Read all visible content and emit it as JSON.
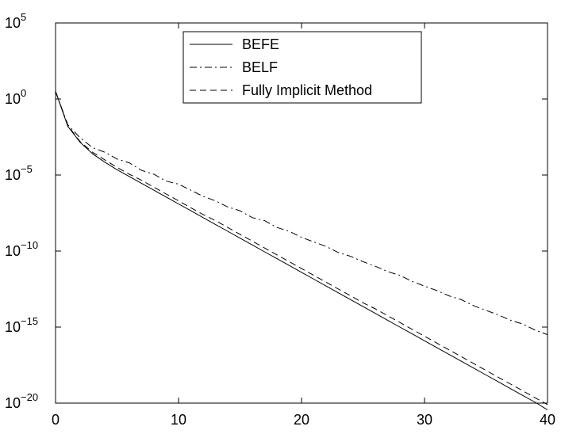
{
  "chart_data": {
    "type": "line",
    "title": "",
    "xlabel": "",
    "ylabel": "",
    "xlim": [
      0,
      40
    ],
    "ylim_log10": [
      -20,
      5
    ],
    "yscale": "log",
    "x_ticks": [
      "0",
      "10",
      "20",
      "30",
      "40"
    ],
    "y_ticks": [
      {
        "base": "10",
        "exp": "5"
      },
      {
        "base": "10",
        "exp": "0"
      },
      {
        "base": "10",
        "exp": "−5"
      },
      {
        "base": "10",
        "exp": "−10"
      },
      {
        "base": "10",
        "exp": "−15"
      },
      {
        "base": "10",
        "exp": "−20"
      }
    ],
    "legend_position": "top-center",
    "grid": false,
    "series": [
      {
        "name": "BEFE",
        "style": "solid",
        "color": "#000000",
        "x": [
          0,
          1,
          2,
          3,
          4,
          5,
          6,
          7,
          8,
          9,
          10,
          11,
          12,
          13,
          14,
          15,
          16,
          17,
          18,
          19,
          20,
          21,
          22,
          23,
          24,
          25,
          26,
          27,
          28,
          29,
          30,
          31,
          32,
          33,
          34,
          35,
          36,
          37,
          38,
          39,
          40
        ],
        "log10_y": [
          0.5,
          -1.8,
          -2.85,
          -3.6,
          -4.15,
          -4.65,
          -5.1,
          -5.55,
          -6.0,
          -6.45,
          -6.9,
          -7.35,
          -7.8,
          -8.25,
          -8.7,
          -9.15,
          -9.6,
          -10.05,
          -10.5,
          -10.95,
          -11.4,
          -11.85,
          -12.3,
          -12.75,
          -13.2,
          -13.65,
          -14.1,
          -14.55,
          -15.0,
          -15.45,
          -15.9,
          -16.35,
          -16.8,
          -17.25,
          -17.7,
          -18.15,
          -18.6,
          -19.05,
          -19.5,
          -19.95,
          -20.45
        ]
      },
      {
        "name": "BELF",
        "style": "dashdot",
        "color": "#000000",
        "x": [
          0,
          1,
          2,
          3,
          4,
          5,
          6,
          7,
          8,
          9,
          10,
          11,
          12,
          13,
          14,
          15,
          16,
          17,
          18,
          19,
          20,
          21,
          22,
          23,
          24,
          25,
          26,
          27,
          28,
          29,
          30,
          31,
          32,
          33,
          34,
          35,
          36,
          37,
          38,
          39,
          40
        ],
        "log10_y": [
          0.5,
          -1.7,
          -2.55,
          -3.2,
          -3.5,
          -3.95,
          -4.2,
          -4.7,
          -4.95,
          -5.4,
          -5.6,
          -6.0,
          -6.4,
          -6.7,
          -7.1,
          -7.35,
          -7.8,
          -8.0,
          -8.45,
          -8.7,
          -9.1,
          -9.4,
          -9.7,
          -10.1,
          -10.35,
          -10.7,
          -11.0,
          -11.35,
          -11.6,
          -12.0,
          -12.3,
          -12.6,
          -12.95,
          -13.2,
          -13.6,
          -13.9,
          -14.2,
          -14.55,
          -14.8,
          -15.2,
          -15.5
        ]
      },
      {
        "name": "Fully Implicit Method",
        "style": "dashed",
        "color": "#000000",
        "x": [
          0,
          1,
          2,
          3,
          4,
          5,
          6,
          7,
          8,
          9,
          10,
          11,
          12,
          13,
          14,
          15,
          16,
          17,
          18,
          19,
          20,
          21,
          22,
          23,
          24,
          25,
          26,
          27,
          28,
          29,
          30,
          31,
          32,
          33,
          34,
          35,
          36,
          37,
          38,
          39,
          40
        ],
        "log10_y": [
          0.5,
          -1.75,
          -2.8,
          -3.5,
          -4.0,
          -4.5,
          -4.95,
          -5.35,
          -5.8,
          -6.25,
          -6.7,
          -7.15,
          -7.6,
          -8.0,
          -8.45,
          -8.9,
          -9.35,
          -9.8,
          -10.25,
          -10.7,
          -11.15,
          -11.6,
          -12.05,
          -12.5,
          -12.95,
          -13.4,
          -13.8,
          -14.25,
          -14.7,
          -15.15,
          -15.6,
          -16.05,
          -16.5,
          -16.95,
          -17.4,
          -17.85,
          -18.3,
          -18.75,
          -19.2,
          -19.65,
          -20.1
        ]
      }
    ]
  }
}
